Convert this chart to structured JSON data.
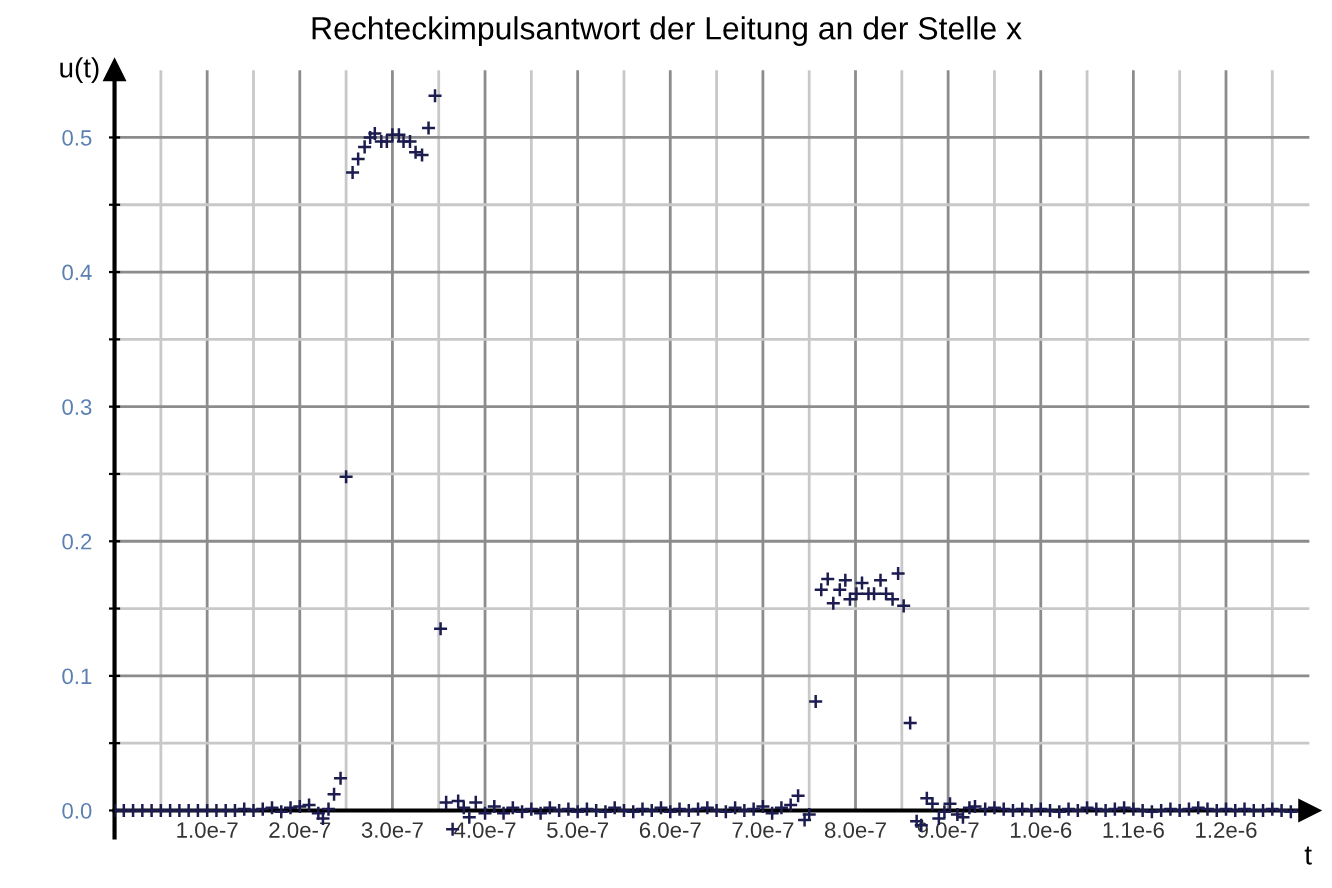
{
  "chart_data": {
    "type": "scatter",
    "title": "Rechteckimpulsantwort der Leitung an der Stelle x",
    "xlabel": "t",
    "ylabel": "u(t)",
    "marker": "cross",
    "grid": true,
    "xlim": [
      0,
      1.29e-06
    ],
    "ylim": [
      -0.02,
      0.55
    ],
    "xticks": [
      {
        "value": 5e-08,
        "label": null
      },
      {
        "value": 1e-07,
        "label": "1.0e-7"
      },
      {
        "value": 1.5e-07,
        "label": null
      },
      {
        "value": 2e-07,
        "label": "2.0e-7"
      },
      {
        "value": 2.5e-07,
        "label": null
      },
      {
        "value": 3e-07,
        "label": "3.0e-7"
      },
      {
        "value": 3.5e-07,
        "label": null
      },
      {
        "value": 4e-07,
        "label": "4.0e-7"
      },
      {
        "value": 4.5e-07,
        "label": null
      },
      {
        "value": 5e-07,
        "label": "5.0e-7"
      },
      {
        "value": 5.5e-07,
        "label": null
      },
      {
        "value": 6e-07,
        "label": "6.0e-7"
      },
      {
        "value": 6.5e-07,
        "label": null
      },
      {
        "value": 7e-07,
        "label": "7.0e-7"
      },
      {
        "value": 7.5e-07,
        "label": null
      },
      {
        "value": 8e-07,
        "label": "8.0e-7"
      },
      {
        "value": 8.5e-07,
        "label": null
      },
      {
        "value": 9e-07,
        "label": "9.0e-7"
      },
      {
        "value": 9.5e-07,
        "label": null
      },
      {
        "value": 1e-06,
        "label": "1.0e-6"
      },
      {
        "value": 1.05e-06,
        "label": null
      },
      {
        "value": 1.1e-06,
        "label": "1.1e-6"
      },
      {
        "value": 1.15e-06,
        "label": null
      },
      {
        "value": 1.2e-06,
        "label": "1.2e-6"
      },
      {
        "value": 1.25e-06,
        "label": null
      }
    ],
    "yticks": [
      {
        "value": 0,
        "label": "0.0"
      },
      {
        "value": 0.05,
        "label": null
      },
      {
        "value": 0.1,
        "label": "0.1"
      },
      {
        "value": 0.15,
        "label": null
      },
      {
        "value": 0.2,
        "label": "0.2"
      },
      {
        "value": 0.25,
        "label": null
      },
      {
        "value": 0.3,
        "label": "0.3"
      },
      {
        "value": 0.35,
        "label": null
      },
      {
        "value": 0.4,
        "label": "0.4"
      },
      {
        "value": 0.45,
        "label": null
      },
      {
        "value": 0.5,
        "label": "0.5"
      }
    ],
    "series": [
      {
        "color": "#1c1c50",
        "x": [
          0,
          1e-08,
          2e-08,
          3e-08,
          4e-08,
          5e-08,
          6e-08,
          7e-08,
          8e-08,
          9e-08,
          1e-07,
          1.1e-07,
          1.2e-07,
          1.3e-07,
          1.4e-07,
          1.5e-07,
          1.6e-07,
          1.7e-07,
          1.8e-07,
          1.9e-07,
          2e-07,
          2.1e-07,
          2.2e-07,
          2.25e-07,
          2.31e-07,
          2.37e-07,
          2.44e-07,
          2.5e-07,
          2.57e-07,
          2.63e-07,
          2.7e-07,
          2.76e-07,
          2.81e-07,
          2.88e-07,
          2.94e-07,
          3e-07,
          3.07e-07,
          3.12e-07,
          3.19e-07,
          3.25e-07,
          3.32e-07,
          3.39e-07,
          3.46e-07,
          3.52e-07,
          3.58e-07,
          3.65e-07,
          3.71e-07,
          3.77e-07,
          3.83e-07,
          3.9e-07,
          4e-07,
          4.1e-07,
          4.2e-07,
          4.3e-07,
          4.4e-07,
          4.5e-07,
          4.6e-07,
          4.7e-07,
          4.8e-07,
          4.9e-07,
          5e-07,
          5.1e-07,
          5.2e-07,
          5.3e-07,
          5.4e-07,
          5.5e-07,
          5.6e-07,
          5.7e-07,
          5.8e-07,
          5.9e-07,
          6e-07,
          6.1e-07,
          6.2e-07,
          6.3e-07,
          6.4e-07,
          6.5e-07,
          6.6e-07,
          6.7e-07,
          6.8e-07,
          6.9e-07,
          7e-07,
          7.1e-07,
          7.2e-07,
          7.3e-07,
          7.38e-07,
          7.45e-07,
          7.5e-07,
          7.57e-07,
          7.63e-07,
          7.7e-07,
          7.76e-07,
          7.83e-07,
          7.89e-07,
          7.94e-07,
          8.01e-07,
          8.07e-07,
          8.14e-07,
          8.2e-07,
          8.27e-07,
          8.33e-07,
          8.4e-07,
          8.46e-07,
          8.52e-07,
          8.59e-07,
          8.66e-07,
          8.71e-07,
          8.77e-07,
          8.83e-07,
          8.9e-07,
          8.96e-07,
          9.02e-07,
          9.1e-07,
          9.16e-07,
          9.23e-07,
          9.29e-07,
          9.4e-07,
          9.5e-07,
          9.6e-07,
          9.7e-07,
          9.8e-07,
          9.9e-07,
          1e-06,
          1.01e-06,
          1.02e-06,
          1.03e-06,
          1.04e-06,
          1.05e-06,
          1.06e-06,
          1.07e-06,
          1.08e-06,
          1.09e-06,
          1.1e-06,
          1.11e-06,
          1.12e-06,
          1.13e-06,
          1.14e-06,
          1.15e-06,
          1.16e-06,
          1.17e-06,
          1.18e-06,
          1.19e-06,
          1.2e-06,
          1.21e-06,
          1.22e-06,
          1.23e-06,
          1.24e-06,
          1.25e-06,
          1.26e-06,
          1.27e-06,
          1.28e-06
        ],
        "values": [
          0,
          0,
          0,
          0,
          0,
          0,
          0,
          0,
          0,
          0,
          0,
          0,
          0,
          0,
          0.001,
          0,
          0.001,
          0.002,
          -0.001,
          0.002,
          0.003,
          0.004,
          -0.002,
          -0.006,
          0.001,
          0.012,
          0.024,
          0.248,
          0.474,
          0.484,
          0.493,
          0.5,
          0.503,
          0.497,
          0.497,
          0.502,
          0.502,
          0.497,
          0.497,
          0.489,
          0.487,
          0.507,
          0.531,
          0.135,
          0.006,
          -0.014,
          0.007,
          0.002,
          -0.005,
          0.006,
          -0.002,
          0.003,
          -0.002,
          0.002,
          -0.001,
          0.001,
          -0.002,
          0.002,
          0,
          0.001,
          -0.001,
          0.001,
          0,
          -0.001,
          0.002,
          0,
          -0.001,
          0.001,
          0,
          0.002,
          -0.001,
          0.001,
          0,
          0.001,
          0.002,
          0,
          -0.001,
          0.002,
          0,
          0.001,
          0.003,
          -0.002,
          0.002,
          0.004,
          0.011,
          -0.007,
          -0.003,
          0.081,
          0.164,
          0.172,
          0.154,
          0.164,
          0.171,
          0.157,
          0.161,
          0.169,
          0.161,
          0.161,
          0.171,
          0.161,
          0.157,
          0.176,
          0.152,
          0.065,
          -0.008,
          -0.011,
          0.009,
          0.005,
          -0.006,
          -0.001,
          0.005,
          -0.003,
          -0.005,
          0.002,
          0.003,
          0.001,
          0.002,
          0.001,
          0,
          0.001,
          0,
          0.001,
          0,
          -0.001,
          0.001,
          0,
          0.002,
          0.001,
          0,
          0.001,
          0.002,
          0.001,
          0,
          -0.001,
          0,
          0.001,
          0,
          0.001,
          0.002,
          0.001,
          0,
          0.001,
          0,
          0.001,
          0,
          0,
          0.001,
          0,
          -0.001,
          0
        ]
      }
    ]
  }
}
